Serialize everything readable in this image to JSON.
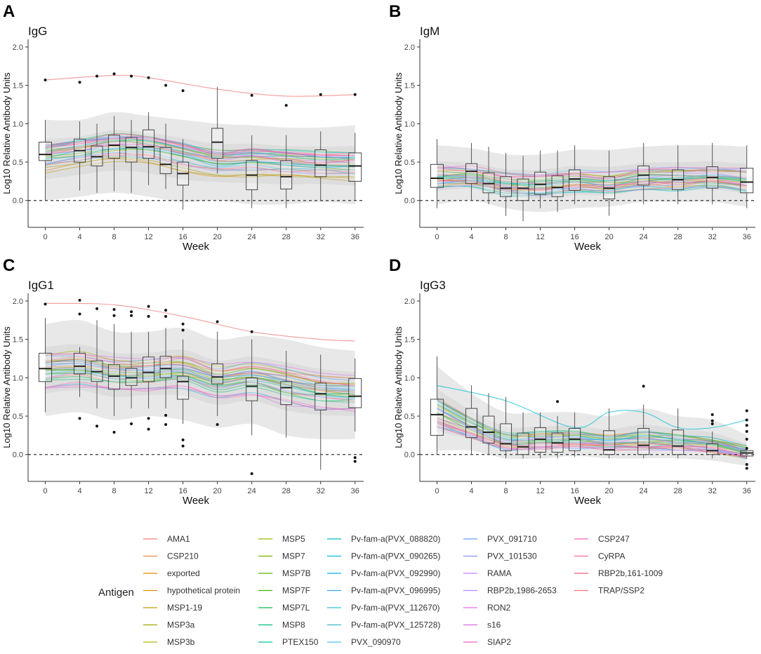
{
  "figure": {
    "axis_x_label": "Week",
    "axis_y_label": "Log10 Relative Antibody Units",
    "x_ticks": [
      0,
      4,
      8,
      12,
      16,
      20,
      24,
      28,
      32,
      36
    ],
    "y_ticks": [
      "0.0",
      "0.5",
      "1.0",
      "1.5",
      "2.0"
    ]
  },
  "legend": {
    "title": "Antigen",
    "items": [
      {
        "label": "AMA1",
        "color": "#f8766d"
      },
      {
        "label": "CSP210",
        "color": "#f08a4b"
      },
      {
        "label": "exported",
        "color": "#e58700"
      },
      {
        "label": "hypothetical protein",
        "color": "#d89000"
      },
      {
        "label": "MSP1-19",
        "color": "#c09b00"
      },
      {
        "label": "MSP3a",
        "color": "#a3a500"
      },
      {
        "label": "MSP3b",
        "color": "#b3b300"
      },
      {
        "label": "MSP5",
        "color": "#9db600"
      },
      {
        "label": "MSP7",
        "color": "#7cae00"
      },
      {
        "label": "MSP7B",
        "color": "#5bb300"
      },
      {
        "label": "MSP7F",
        "color": "#39b600"
      },
      {
        "label": "MSP7L",
        "color": "#00bb4e"
      },
      {
        "label": "MSP8",
        "color": "#00bf7d"
      },
      {
        "label": "PTEX150",
        "color": "#00c1a3"
      },
      {
        "label": "Pv-fam-a(PVX_088820)",
        "color": "#00bfc4"
      },
      {
        "label": "Pv-fam-a(PVX_090265)",
        "color": "#00bae0"
      },
      {
        "label": "Pv-fam-a(PVX_092990)",
        "color": "#00b0f6"
      },
      {
        "label": "Pv-fam-a(PVX_096995)",
        "color": "#35a2ff"
      },
      {
        "label": "Pv-fam-a(PVX_112670)",
        "color": "#26c6da"
      },
      {
        "label": "Pv-fam-a(PVX_125728)",
        "color": "#3fb8c6"
      },
      {
        "label": "PVX_090970",
        "color": "#4fc3f7"
      },
      {
        "label": "PVX_091710",
        "color": "#619cff"
      },
      {
        "label": "PVX_101530",
        "color": "#9590ff"
      },
      {
        "label": "RAMA",
        "color": "#c77cff"
      },
      {
        "label": "RBP2b,1986-2653",
        "color": "#b983ff"
      },
      {
        "label": "RON2",
        "color": "#e76bf3"
      },
      {
        "label": "s16",
        "color": "#d36be0"
      },
      {
        "label": "SIAP2",
        "color": "#ff61c3"
      },
      {
        "label": "CSP247",
        "color": "#ff62bc"
      },
      {
        "label": "CyRPA",
        "color": "#ff6c91"
      },
      {
        "label": "RBP2b,161-1009",
        "color": "#f5577a"
      },
      {
        "label": "TRAP/SSP2",
        "color": "#fc717f"
      }
    ]
  },
  "chart_data": [
    {
      "panel": "A",
      "type": "box",
      "title": "IgG",
      "xlabel": "Week",
      "ylabel": "Log10 Relative Antibody Units",
      "xlim": [
        -2,
        37
      ],
      "ylim": [
        -0.35,
        2.1
      ],
      "reference_line": 0.0,
      "boxes": [
        {
          "week": 0,
          "q1": 0.52,
          "median": 0.6,
          "q3": 0.76,
          "lo": 0.0,
          "hi": 1.05,
          "outliers": [
            1.57
          ]
        },
        {
          "week": 4,
          "q1": 0.5,
          "median": 0.65,
          "q3": 0.8,
          "lo": 0.13,
          "hi": 1.03,
          "outliers": [
            1.54
          ]
        },
        {
          "week": 6,
          "q1": 0.45,
          "median": 0.57,
          "q3": 0.71,
          "lo": 0.1,
          "hi": 1.0,
          "outliers": [
            1.62
          ]
        },
        {
          "week": 8,
          "q1": 0.55,
          "median": 0.72,
          "q3": 0.85,
          "lo": 0.12,
          "hi": 1.1,
          "outliers": [
            1.65
          ]
        },
        {
          "week": 10,
          "q1": 0.5,
          "median": 0.69,
          "q3": 0.82,
          "lo": 0.1,
          "hi": 1.05,
          "outliers": [
            1.62
          ]
        },
        {
          "week": 12,
          "q1": 0.55,
          "median": 0.7,
          "q3": 0.92,
          "lo": 0.2,
          "hi": 1.15,
          "outliers": [
            1.6
          ]
        },
        {
          "week": 14,
          "q1": 0.35,
          "median": 0.47,
          "q3": 0.69,
          "lo": 0.15,
          "hi": 1.0,
          "outliers": [
            1.5
          ]
        },
        {
          "week": 16,
          "q1": 0.2,
          "median": 0.35,
          "q3": 0.5,
          "lo": -0.12,
          "hi": 0.8,
          "outliers": [
            1.43
          ]
        },
        {
          "week": 20,
          "q1": 0.55,
          "median": 0.76,
          "q3": 0.94,
          "lo": 0.35,
          "hi": 1.48,
          "outliers": []
        },
        {
          "week": 24,
          "q1": 0.14,
          "median": 0.33,
          "q3": 0.52,
          "lo": -0.1,
          "hi": 0.85,
          "outliers": [
            1.37
          ]
        },
        {
          "week": 28,
          "q1": 0.15,
          "median": 0.31,
          "q3": 0.52,
          "lo": -0.1,
          "hi": 0.85,
          "outliers": [
            1.24
          ]
        },
        {
          "week": 32,
          "q1": 0.31,
          "median": 0.46,
          "q3": 0.66,
          "lo": 0.0,
          "hi": 0.9,
          "outliers": [
            1.38
          ]
        },
        {
          "week": 36,
          "q1": 0.25,
          "median": 0.45,
          "q3": 0.62,
          "lo": 0.0,
          "hi": 0.88,
          "outliers": [
            1.38
          ]
        }
      ],
      "band": {
        "center": [
          0.55,
          0.62,
          0.68,
          0.66,
          0.57,
          0.48,
          0.5,
          0.47,
          0.45,
          0.44
        ],
        "lower": [
          0.0,
          0.05,
          0.1,
          0.05,
          -0.02,
          0.0,
          -0.05,
          -0.05,
          -0.02,
          -0.05
        ],
        "upper": [
          1.05,
          1.05,
          1.15,
          1.1,
          1.05,
          1.0,
          0.98,
          0.95,
          0.95,
          0.98
        ]
      },
      "highlight_line": {
        "week": [
          0,
          8,
          12,
          20,
          28,
          36
        ],
        "value": [
          1.57,
          1.63,
          1.6,
          1.45,
          1.36,
          1.38
        ]
      }
    },
    {
      "panel": "B",
      "type": "box",
      "title": "IgM",
      "xlabel": "Week",
      "ylabel": "Log10 Relative Antibody Units",
      "xlim": [
        -2,
        37
      ],
      "ylim": [
        -0.35,
        2.1
      ],
      "reference_line": 0.0,
      "boxes": [
        {
          "week": 0,
          "q1": 0.17,
          "median": 0.29,
          "q3": 0.47,
          "lo": -0.1,
          "hi": 0.8,
          "outliers": []
        },
        {
          "week": 4,
          "q1": 0.22,
          "median": 0.38,
          "q3": 0.48,
          "lo": 0.0,
          "hi": 0.75,
          "outliers": []
        },
        {
          "week": 6,
          "q1": 0.1,
          "median": 0.22,
          "q3": 0.36,
          "lo": -0.05,
          "hi": 0.7,
          "outliers": []
        },
        {
          "week": 8,
          "q1": 0.05,
          "median": 0.16,
          "q3": 0.31,
          "lo": -0.2,
          "hi": 0.62,
          "outliers": []
        },
        {
          "week": 10,
          "q1": 0.0,
          "median": 0.16,
          "q3": 0.28,
          "lo": -0.27,
          "hi": 0.58,
          "outliers": []
        },
        {
          "week": 12,
          "q1": 0.08,
          "median": 0.21,
          "q3": 0.37,
          "lo": -0.1,
          "hi": 0.65,
          "outliers": []
        },
        {
          "week": 14,
          "q1": 0.05,
          "median": 0.17,
          "q3": 0.32,
          "lo": -0.15,
          "hi": 0.65,
          "outliers": []
        },
        {
          "week": 16,
          "q1": 0.13,
          "median": 0.28,
          "q3": 0.4,
          "lo": -0.05,
          "hi": 0.72,
          "outliers": []
        },
        {
          "week": 20,
          "q1": 0.02,
          "median": 0.16,
          "q3": 0.31,
          "lo": -0.2,
          "hi": 0.65,
          "outliers": []
        },
        {
          "week": 24,
          "q1": 0.2,
          "median": 0.33,
          "q3": 0.45,
          "lo": -0.05,
          "hi": 0.75,
          "outliers": []
        },
        {
          "week": 28,
          "q1": 0.14,
          "median": 0.27,
          "q3": 0.4,
          "lo": -0.05,
          "hi": 0.72,
          "outliers": []
        },
        {
          "week": 32,
          "q1": 0.16,
          "median": 0.3,
          "q3": 0.44,
          "lo": -0.05,
          "hi": 0.75,
          "outliers": []
        },
        {
          "week": 36,
          "q1": 0.1,
          "median": 0.24,
          "q3": 0.42,
          "lo": -0.1,
          "hi": 0.72,
          "outliers": []
        }
      ],
      "band": {
        "center": [
          0.3,
          0.3,
          0.22,
          0.2,
          0.24,
          0.22,
          0.28,
          0.28,
          0.3,
          0.26
        ],
        "lower": [
          -0.05,
          0.0,
          -0.1,
          -0.15,
          -0.1,
          -0.08,
          -0.02,
          -0.02,
          -0.02,
          -0.08
        ],
        "upper": [
          0.72,
          0.68,
          0.6,
          0.6,
          0.66,
          0.66,
          0.7,
          0.72,
          0.72,
          0.7
        ]
      },
      "highlight_line": null
    },
    {
      "panel": "C",
      "type": "box",
      "title": "IgG1",
      "xlabel": "Week",
      "ylabel": "Log10 Relative Antibody Units",
      "xlim": [
        -2,
        37
      ],
      "ylim": [
        -0.35,
        2.1
      ],
      "reference_line": 0.0,
      "boxes": [
        {
          "week": 0,
          "q1": 0.95,
          "median": 1.12,
          "q3": 1.32,
          "lo": 0.55,
          "hi": 1.78,
          "outliers": [
            1.96
          ]
        },
        {
          "week": 4,
          "q1": 1.05,
          "median": 1.15,
          "q3": 1.32,
          "lo": 0.75,
          "hi": 1.4,
          "outliers": [
            2.01,
            1.83,
            0.47
          ]
        },
        {
          "week": 6,
          "q1": 0.95,
          "median": 1.08,
          "q3": 1.22,
          "lo": 0.6,
          "hi": 1.75,
          "outliers": [
            1.9,
            0.37
          ]
        },
        {
          "week": 8,
          "q1": 0.85,
          "median": 1.02,
          "q3": 1.17,
          "lo": 0.5,
          "hi": 1.7,
          "outliers": [
            1.89,
            1.81,
            0.29
          ]
        },
        {
          "week": 10,
          "q1": 0.9,
          "median": 1.0,
          "q3": 1.12,
          "lo": 0.6,
          "hi": 1.6,
          "outliers": [
            1.86,
            1.81,
            0.4
          ]
        },
        {
          "week": 12,
          "q1": 0.95,
          "median": 1.07,
          "q3": 1.27,
          "lo": 0.6,
          "hi": 1.6,
          "outliers": [
            1.93,
            1.8,
            0.47,
            0.33
          ]
        },
        {
          "week": 14,
          "q1": 1.0,
          "median": 1.12,
          "q3": 1.28,
          "lo": 0.6,
          "hi": 1.65,
          "outliers": [
            1.88,
            1.8,
            0.51,
            0.39
          ]
        },
        {
          "week": 16,
          "q1": 0.72,
          "median": 0.95,
          "q3": 1.02,
          "lo": 0.4,
          "hi": 1.5,
          "outliers": [
            1.7,
            1.62,
            0.19,
            0.11
          ]
        },
        {
          "week": 20,
          "q1": 0.92,
          "median": 1.01,
          "q3": 1.18,
          "lo": 0.5,
          "hi": 1.6,
          "outliers": [
            1.73,
            0.39
          ]
        },
        {
          "week": 24,
          "q1": 0.7,
          "median": 0.89,
          "q3": 1.0,
          "lo": 0.25,
          "hi": 1.5,
          "outliers": [
            1.6,
            -0.25
          ]
        },
        {
          "week": 28,
          "q1": 0.65,
          "median": 0.87,
          "q3": 0.95,
          "lo": 0.22,
          "hi": 1.35,
          "outliers": []
        },
        {
          "week": 32,
          "q1": 0.58,
          "median": 0.79,
          "q3": 0.93,
          "lo": -0.2,
          "hi": 1.3,
          "outliers": []
        },
        {
          "week": 36,
          "q1": 0.61,
          "median": 0.76,
          "q3": 0.99,
          "lo": 0.3,
          "hi": 1.25,
          "outliers": [
            -0.04,
            -0.09
          ]
        }
      ],
      "band": {
        "center": [
          1.1,
          1.12,
          1.05,
          1.05,
          1.08,
          0.95,
          1.0,
          0.9,
          0.83,
          0.8
        ],
        "lower": [
          0.5,
          0.55,
          0.45,
          0.5,
          0.45,
          0.35,
          0.4,
          0.25,
          0.2,
          0.2
        ],
        "upper": [
          1.7,
          1.75,
          1.6,
          1.6,
          1.65,
          1.5,
          1.55,
          1.5,
          1.4,
          1.35
        ]
      },
      "highlight_line": {
        "week": [
          0,
          8,
          16,
          24,
          32,
          36
        ],
        "value": [
          1.97,
          1.95,
          1.8,
          1.6,
          1.5,
          1.48
        ]
      }
    },
    {
      "panel": "D",
      "type": "box",
      "title": "IgG3",
      "xlabel": "Week",
      "ylabel": "Log10 Relative Antibody Units",
      "xlim": [
        -2,
        37
      ],
      "ylim": [
        -0.35,
        2.1
      ],
      "reference_line": 0.0,
      "boxes": [
        {
          "week": 0,
          "q1": 0.25,
          "median": 0.52,
          "q3": 0.72,
          "lo": 0.0,
          "hi": 1.28,
          "outliers": []
        },
        {
          "week": 4,
          "q1": 0.22,
          "median": 0.36,
          "q3": 0.6,
          "lo": 0.0,
          "hi": 0.9,
          "outliers": []
        },
        {
          "week": 6,
          "q1": 0.15,
          "median": 0.29,
          "q3": 0.5,
          "lo": 0.0,
          "hi": 0.8,
          "outliers": []
        },
        {
          "week": 8,
          "q1": 0.05,
          "median": 0.14,
          "q3": 0.4,
          "lo": -0.05,
          "hi": 0.75,
          "outliers": []
        },
        {
          "week": 10,
          "q1": 0.0,
          "median": 0.1,
          "q3": 0.28,
          "lo": -0.05,
          "hi": 0.55,
          "outliers": []
        },
        {
          "week": 12,
          "q1": 0.03,
          "median": 0.2,
          "q3": 0.35,
          "lo": -0.05,
          "hi": 0.55,
          "outliers": []
        },
        {
          "week": 14,
          "q1": 0.03,
          "median": 0.15,
          "q3": 0.28,
          "lo": -0.05,
          "hi": 0.5,
          "outliers": [
            0.69
          ]
        },
        {
          "week": 16,
          "q1": 0.05,
          "median": 0.2,
          "q3": 0.34,
          "lo": -0.03,
          "hi": 0.55,
          "outliers": []
        },
        {
          "week": 20,
          "q1": 0.0,
          "median": 0.06,
          "q3": 0.31,
          "lo": -0.05,
          "hi": 0.6,
          "outliers": []
        },
        {
          "week": 24,
          "q1": 0.0,
          "median": 0.12,
          "q3": 0.34,
          "lo": -0.05,
          "hi": 0.65,
          "outliers": [
            0.89
          ]
        },
        {
          "week": 28,
          "q1": 0.0,
          "median": 0.11,
          "q3": 0.32,
          "lo": -0.05,
          "hi": 0.6,
          "outliers": []
        },
        {
          "week": 32,
          "q1": 0.0,
          "median": 0.05,
          "q3": 0.14,
          "lo": -0.05,
          "hi": 0.3,
          "outliers": [
            0.52,
            0.44,
            0.4
          ]
        },
        {
          "week": 36,
          "q1": -0.02,
          "median": 0.02,
          "q3": 0.05,
          "lo": -0.05,
          "hi": 0.1,
          "outliers": [
            0.57,
            0.45,
            0.38,
            0.3,
            0.2,
            0.08,
            -0.13,
            -0.18
          ]
        }
      ],
      "band": {
        "center": [
          0.55,
          0.35,
          0.18,
          0.18,
          0.2,
          0.16,
          0.18,
          0.16,
          0.12,
          0.03
        ],
        "lower": [
          0.05,
          0.05,
          -0.05,
          -0.05,
          -0.02,
          -0.05,
          -0.05,
          -0.05,
          -0.08,
          -0.15
        ],
        "upper": [
          1.15,
          0.8,
          0.55,
          0.55,
          0.55,
          0.5,
          0.6,
          0.5,
          0.45,
          0.25
        ]
      },
      "highlight_line": {
        "week": [
          0,
          8,
          16,
          20,
          24,
          28,
          32,
          36
        ],
        "value": [
          0.9,
          0.7,
          0.35,
          0.55,
          0.55,
          0.35,
          0.35,
          0.45
        ]
      }
    }
  ]
}
